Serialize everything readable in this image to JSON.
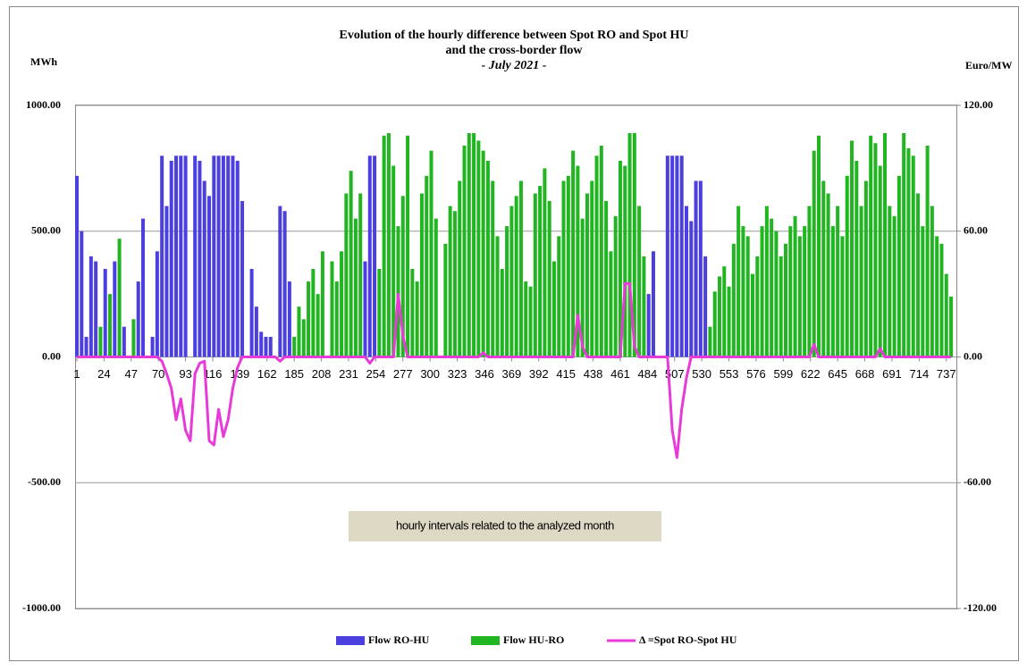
{
  "chart_data": {
    "type": "bar",
    "title": "Evolution of the hourly  difference between Spot RO and Spot HU",
    "subtitle": "and the cross-border flow",
    "period": "- July 2021 -",
    "y_label": "MWh",
    "y2_label": "Euro/MW",
    "annotation": "hourly intervals related to the analyzed month",
    "xlim": [
      1,
      744
    ],
    "xticks": [
      1,
      24,
      47,
      70,
      93,
      116,
      139,
      162,
      185,
      208,
      231,
      254,
      277,
      300,
      323,
      346,
      369,
      392,
      415,
      438,
      461,
      484,
      507,
      530,
      553,
      576,
      599,
      622,
      645,
      668,
      691,
      714,
      737
    ],
    "ylim": [
      -1000,
      1000
    ],
    "yticks": [
      {
        "value": -1000,
        "label": "-1000.00"
      },
      {
        "value": -500,
        "label": "-500.00"
      },
      {
        "value": 0,
        "label": "0.00"
      },
      {
        "value": 500,
        "label": "500.00"
      },
      {
        "value": 1000,
        "label": "1000.00"
      }
    ],
    "y2lim": [
      -120,
      120
    ],
    "y2ticks": [
      {
        "value": -120,
        "label": "-120.00"
      },
      {
        "value": -60,
        "label": "-60.00"
      },
      {
        "value": 0,
        "label": "0.00"
      },
      {
        "value": 60,
        "label": "60.00"
      },
      {
        "value": 120,
        "label": "120.00"
      }
    ],
    "grid": true,
    "legend": "bottom",
    "x": [
      1,
      5,
      9,
      13,
      17,
      21,
      25,
      29,
      33,
      37,
      41,
      45,
      49,
      53,
      57,
      61,
      65,
      69,
      73,
      77,
      81,
      85,
      89,
      93,
      97,
      101,
      105,
      109,
      113,
      117,
      121,
      125,
      129,
      133,
      137,
      141,
      145,
      149,
      153,
      157,
      161,
      165,
      169,
      173,
      177,
      181,
      185,
      189,
      193,
      197,
      201,
      205,
      209,
      213,
      217,
      221,
      225,
      229,
      233,
      237,
      241,
      245,
      249,
      253,
      257,
      261,
      265,
      269,
      273,
      277,
      281,
      285,
      289,
      293,
      297,
      301,
      305,
      309,
      313,
      317,
      321,
      325,
      329,
      333,
      337,
      341,
      345,
      349,
      353,
      357,
      361,
      365,
      369,
      373,
      377,
      381,
      385,
      389,
      393,
      397,
      401,
      405,
      409,
      413,
      417,
      421,
      425,
      429,
      433,
      437,
      441,
      445,
      449,
      453,
      457,
      461,
      465,
      469,
      473,
      477,
      481,
      485,
      489,
      493,
      497,
      501,
      505,
      509,
      513,
      517,
      521,
      525,
      529,
      533,
      537,
      541,
      545,
      549,
      553,
      557,
      561,
      565,
      569,
      573,
      577,
      581,
      585,
      589,
      593,
      597,
      601,
      605,
      609,
      613,
      617,
      621,
      625,
      629,
      633,
      637,
      641,
      645,
      649,
      653,
      657,
      661,
      665,
      669,
      673,
      677,
      681,
      685,
      689,
      693,
      697,
      701,
      705,
      709,
      713,
      717,
      721,
      725,
      729,
      733,
      737,
      741
    ],
    "series": [
      {
        "name": "Flow RO-HU",
        "color": "#4b3fe0",
        "type": "bar",
        "values": [
          720,
          500,
          80,
          400,
          380,
          0,
          350,
          60,
          380,
          0,
          120,
          0,
          0,
          300,
          550,
          0,
          80,
          420,
          800,
          600,
          780,
          800,
          800,
          800,
          0,
          800,
          780,
          700,
          640,
          800,
          800,
          800,
          800,
          800,
          780,
          620,
          0,
          350,
          200,
          100,
          80,
          80,
          0,
          600,
          580,
          300,
          0,
          0,
          0,
          0,
          0,
          0,
          0,
          0,
          0,
          0,
          0,
          0,
          0,
          0,
          0,
          380,
          800,
          800,
          0,
          0,
          0,
          0,
          0,
          0,
          0,
          0,
          0,
          0,
          0,
          0,
          0,
          0,
          0,
          0,
          0,
          0,
          0,
          0,
          0,
          0,
          0,
          0,
          0,
          0,
          0,
          0,
          0,
          0,
          0,
          0,
          0,
          0,
          0,
          0,
          0,
          0,
          0,
          0,
          0,
          0,
          0,
          0,
          0,
          0,
          0,
          0,
          0,
          0,
          0,
          0,
          0,
          0,
          0,
          0,
          0,
          250,
          420,
          0,
          0,
          800,
          800,
          800,
          800,
          600,
          540,
          700,
          700,
          400,
          0,
          0,
          0,
          0,
          0,
          0,
          0,
          0,
          0,
          0,
          0,
          0,
          0,
          0,
          0,
          0,
          0,
          0,
          0,
          0,
          0,
          0,
          0,
          0,
          0,
          0,
          0,
          0,
          0,
          0,
          0,
          0,
          0,
          0,
          0,
          0,
          0,
          0,
          0,
          0,
          0,
          0,
          0,
          0,
          0,
          0,
          0,
          0,
          0,
          0,
          0,
          0
        ]
      },
      {
        "name": "Flow HU-RO",
        "color": "#22b522",
        "type": "bar",
        "values": [
          0,
          0,
          0,
          0,
          0,
          120,
          0,
          250,
          0,
          470,
          0,
          0,
          150,
          0,
          0,
          0,
          0,
          0,
          0,
          0,
          0,
          0,
          0,
          0,
          0,
          0,
          0,
          0,
          0,
          0,
          0,
          0,
          0,
          0,
          0,
          0,
          0,
          0,
          0,
          0,
          0,
          0,
          0,
          0,
          0,
          0,
          80,
          200,
          150,
          300,
          350,
          250,
          420,
          0,
          380,
          300,
          420,
          650,
          740,
          550,
          650,
          0,
          0,
          0,
          350,
          880,
          890,
          760,
          520,
          640,
          880,
          350,
          300,
          650,
          720,
          820,
          550,
          0,
          450,
          600,
          580,
          700,
          840,
          890,
          890,
          860,
          820,
          780,
          700,
          480,
          350,
          520,
          600,
          640,
          700,
          300,
          280,
          650,
          680,
          750,
          620,
          380,
          480,
          700,
          720,
          820,
          760,
          550,
          650,
          700,
          800,
          840,
          620,
          420,
          560,
          780,
          760,
          890,
          890,
          600,
          400,
          0,
          0,
          0,
          0,
          0,
          0,
          0,
          0,
          0,
          0,
          0,
          0,
          0,
          120,
          260,
          320,
          360,
          280,
          450,
          600,
          520,
          480,
          330,
          400,
          520,
          600,
          550,
          500,
          400,
          450,
          520,
          560,
          480,
          520,
          600,
          820,
          880,
          700,
          650,
          520,
          600,
          480,
          720,
          860,
          780,
          600,
          700,
          880,
          850,
          760,
          890,
          600,
          560,
          720,
          890,
          830,
          800,
          650,
          520,
          840,
          600,
          480,
          450,
          330,
          240
        ]
      },
      {
        "name": "Δ =Spot  RO-Spot  HU",
        "color": "#e83ad8",
        "type": "line",
        "axis": "y2",
        "values": [
          0,
          0,
          0,
          0,
          0,
          0,
          0,
          0,
          0,
          0,
          0,
          0,
          0,
          0,
          0,
          0,
          0,
          0,
          -2,
          -8,
          -15,
          -30,
          -20,
          -35,
          -40,
          -8,
          -3,
          -2,
          -40,
          -42,
          -25,
          -38,
          -30,
          -15,
          -5,
          0,
          0,
          0,
          0,
          0,
          0,
          0,
          0,
          -2,
          0,
          0,
          0,
          0,
          0,
          0,
          0,
          0,
          0,
          0,
          0,
          0,
          0,
          0,
          0,
          0,
          0,
          0,
          -3,
          0,
          0,
          0,
          0,
          0,
          30,
          10,
          0,
          0,
          0,
          0,
          0,
          0,
          0,
          0,
          0,
          0,
          0,
          0,
          0,
          0,
          0,
          0,
          2,
          0,
          0,
          0,
          0,
          0,
          0,
          0,
          0,
          0,
          0,
          0,
          0,
          0,
          0,
          0,
          0,
          0,
          0,
          0,
          20,
          5,
          0,
          0,
          0,
          0,
          0,
          0,
          0,
          0,
          35,
          35,
          5,
          0,
          0,
          0,
          0,
          0,
          0,
          0,
          -35,
          -48,
          -25,
          -10,
          0,
          0,
          0,
          0,
          0,
          0,
          0,
          0,
          0,
          0,
          0,
          0,
          0,
          0,
          0,
          0,
          0,
          0,
          0,
          0,
          0,
          0,
          0,
          0,
          0,
          0,
          6,
          0,
          0,
          0,
          0,
          0,
          0,
          0,
          0,
          0,
          0,
          0,
          0,
          0,
          4,
          0,
          0,
          0,
          0,
          0,
          0,
          0,
          0,
          0,
          0,
          0,
          0,
          0,
          0,
          0
        ]
      }
    ]
  }
}
